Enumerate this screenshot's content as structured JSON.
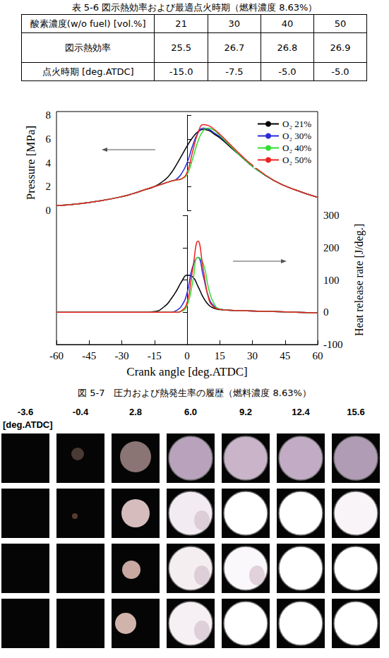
{
  "table": {
    "title": "表 5-6 図示熱効率および最適点火時期（燃料濃度 8.63%）",
    "header": [
      "酸素濃度(w/o fuel) [vol.%]",
      "21",
      "30",
      "40",
      "50"
    ],
    "rows": [
      [
        "図示熱効率",
        "25.5",
        "26.7",
        "26.8",
        "26.9"
      ],
      [
        "点火時期  [deg.ATDC]",
        "-15.0",
        "-7.5",
        "-5.0",
        "-5.0"
      ]
    ]
  },
  "chart_data": {
    "type": "line",
    "xlabel": "Crank angle [deg.ATDC]",
    "ylabel": "Pressure [MPa]",
    "y2label": "Heat release rate [J/deg.]",
    "xlim": [
      -60,
      60
    ],
    "xticks": [
      -60,
      -45,
      -30,
      -15,
      0,
      15,
      30,
      45,
      60
    ],
    "ylim": [
      0,
      8
    ],
    "yticks": [
      0,
      2,
      4,
      6,
      8
    ],
    "y2lim": [
      -100,
      300
    ],
    "y2ticks": [
      -100,
      0,
      100,
      200,
      300
    ],
    "grid": false,
    "legend": "upper right",
    "x": [
      -60,
      -50,
      -40,
      -30,
      -25,
      -20,
      -15,
      -10,
      -7.5,
      -5,
      -2.5,
      0,
      2.5,
      5,
      7.5,
      10,
      12.5,
      15,
      20,
      25,
      30,
      40,
      50,
      60
    ],
    "series": [
      {
        "name": "O₂ 21%",
        "color": "#000000",
        "values": [
          0.4,
          0.55,
          0.8,
          1.15,
          1.4,
          1.7,
          2.0,
          2.6,
          3.1,
          3.8,
          4.6,
          5.4,
          6.1,
          6.6,
          6.8,
          6.7,
          6.4,
          6.1,
          5.3,
          4.5,
          3.7,
          2.5,
          1.7,
          1.1
        ]
      },
      {
        "name": "O₂ 30%",
        "color": "#2a2ad8",
        "values": [
          0.4,
          0.55,
          0.8,
          1.15,
          1.4,
          1.7,
          2.0,
          2.3,
          2.45,
          2.6,
          3.1,
          4.0,
          5.4,
          6.5,
          6.9,
          6.8,
          6.5,
          6.2,
          5.4,
          4.5,
          3.7,
          2.5,
          1.7,
          1.1
        ]
      },
      {
        "name": "O₂ 40%",
        "color": "#33dd33",
        "values": [
          0.4,
          0.55,
          0.8,
          1.15,
          1.4,
          1.7,
          2.0,
          2.3,
          2.45,
          2.55,
          2.65,
          3.0,
          4.3,
          5.8,
          6.7,
          6.9,
          6.7,
          6.3,
          5.4,
          4.5,
          3.7,
          2.5,
          1.7,
          1.1
        ]
      },
      {
        "name": "O₂ 50%",
        "color": "#ee2222",
        "values": [
          0.4,
          0.55,
          0.8,
          1.15,
          1.4,
          1.7,
          2.0,
          2.3,
          2.45,
          2.55,
          2.65,
          3.2,
          4.9,
          6.5,
          7.2,
          7.1,
          6.8,
          6.4,
          5.5,
          4.6,
          3.8,
          2.5,
          1.7,
          1.1
        ]
      },
      {
        "name": "O₂ 21%",
        "color": "#000000",
        "axis": "y2",
        "values": [
          0,
          0,
          0,
          0,
          0,
          0,
          2,
          20,
          40,
          65,
          95,
          115,
          110,
          80,
          45,
          22,
          12,
          8,
          6,
          5,
          4,
          2,
          0,
          -2
        ]
      },
      {
        "name": "O₂ 30%",
        "color": "#2a2ad8",
        "axis": "y2",
        "values": [
          0,
          0,
          0,
          0,
          0,
          0,
          0,
          0,
          0,
          5,
          20,
          60,
          140,
          170,
          110,
          45,
          18,
          10,
          6,
          5,
          4,
          2,
          0,
          -2
        ]
      },
      {
        "name": "O₂ 40%",
        "color": "#33dd33",
        "axis": "y2",
        "values": [
          0,
          0,
          0,
          0,
          0,
          0,
          0,
          0,
          0,
          0,
          3,
          20,
          90,
          170,
          150,
          70,
          25,
          10,
          6,
          5,
          4,
          2,
          0,
          -2
        ]
      },
      {
        "name": "O₂ 50%",
        "color": "#ee2222",
        "axis": "y2",
        "values": [
          0,
          0,
          0,
          0,
          0,
          0,
          0,
          0,
          0,
          0,
          5,
          30,
          130,
          220,
          130,
          40,
          15,
          9,
          6,
          5,
          4,
          2,
          0,
          -2
        ]
      }
    ]
  },
  "figure_caption": "図 5-7　圧力および熱発生率の履歴（燃料濃度 8.63%）",
  "photo_sequence": {
    "crank_angles": [
      "-3.6",
      "-0.4",
      "2.8",
      "6.0",
      "9.2",
      "12.4",
      "15.6"
    ],
    "unit": "[deg.ATDC]",
    "rows": 4
  }
}
